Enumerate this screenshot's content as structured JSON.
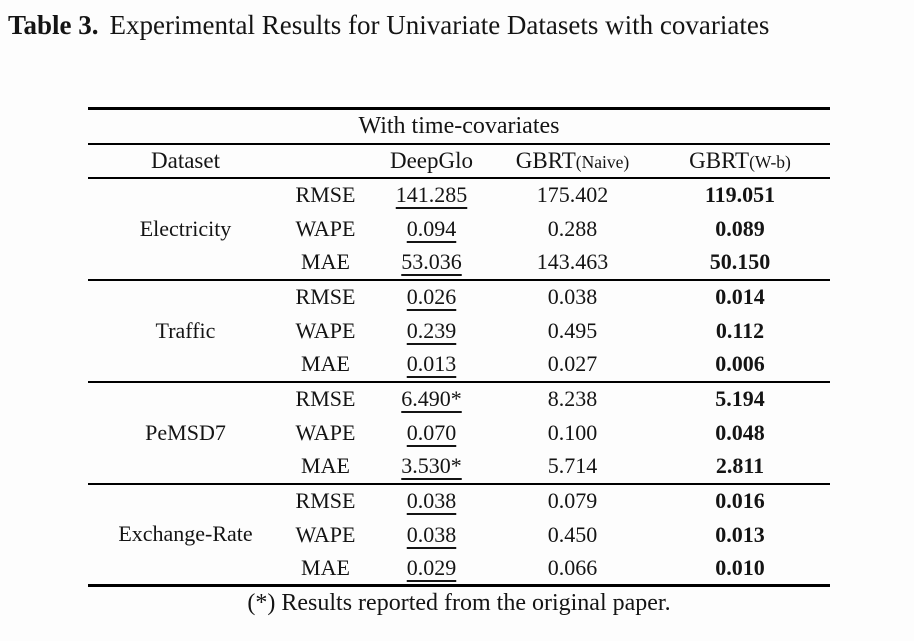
{
  "caption": {
    "label": "Table 3.",
    "text": "Experimental Results for Univariate Datasets with covariates"
  },
  "table": {
    "span_header": "With time-covariates",
    "dataset_header": "Dataset",
    "columns": [
      {
        "main": "DeepGlo",
        "sub": ""
      },
      {
        "main": "GBRT",
        "sub": "(Naive)"
      },
      {
        "main": "GBRT",
        "sub": "(W-b)"
      }
    ],
    "groups": [
      {
        "dataset": "Electricity",
        "rows": [
          {
            "metric": "RMSE",
            "deepglo": "141.285",
            "gbrt_naive": "175.402",
            "gbrt_wb": "119.051"
          },
          {
            "metric": "WAPE",
            "deepglo": "0.094",
            "gbrt_naive": "0.288",
            "gbrt_wb": "0.089"
          },
          {
            "metric": "MAE",
            "deepglo": "53.036",
            "gbrt_naive": "143.463",
            "gbrt_wb": "50.150"
          }
        ]
      },
      {
        "dataset": "Traffic",
        "rows": [
          {
            "metric": "RMSE",
            "deepglo": "0.026",
            "gbrt_naive": "0.038",
            "gbrt_wb": "0.014"
          },
          {
            "metric": "WAPE",
            "deepglo": "0.239",
            "gbrt_naive": "0.495",
            "gbrt_wb": "0.112"
          },
          {
            "metric": "MAE",
            "deepglo": "0.013",
            "gbrt_naive": "0.027",
            "gbrt_wb": "0.006"
          }
        ]
      },
      {
        "dataset": "PeMSD7",
        "rows": [
          {
            "metric": "RMSE",
            "deepglo": "6.490*",
            "gbrt_naive": "8.238",
            "gbrt_wb": "5.194"
          },
          {
            "metric": "WAPE",
            "deepglo": "0.070",
            "gbrt_naive": "0.100",
            "gbrt_wb": "0.048"
          },
          {
            "metric": "MAE",
            "deepglo": "3.530*",
            "gbrt_naive": "5.714",
            "gbrt_wb": "2.811"
          }
        ]
      },
      {
        "dataset": "Exchange-Rate",
        "rows": [
          {
            "metric": "RMSE",
            "deepglo": "0.038",
            "gbrt_naive": "0.079",
            "gbrt_wb": "0.016"
          },
          {
            "metric": "WAPE",
            "deepglo": "0.038",
            "gbrt_naive": "0.450",
            "gbrt_wb": "0.013"
          },
          {
            "metric": "MAE",
            "deepglo": "0.029",
            "gbrt_naive": "0.066",
            "gbrt_wb": "0.010"
          }
        ]
      }
    ]
  },
  "footnote": "(*) Results reported from the original paper."
}
